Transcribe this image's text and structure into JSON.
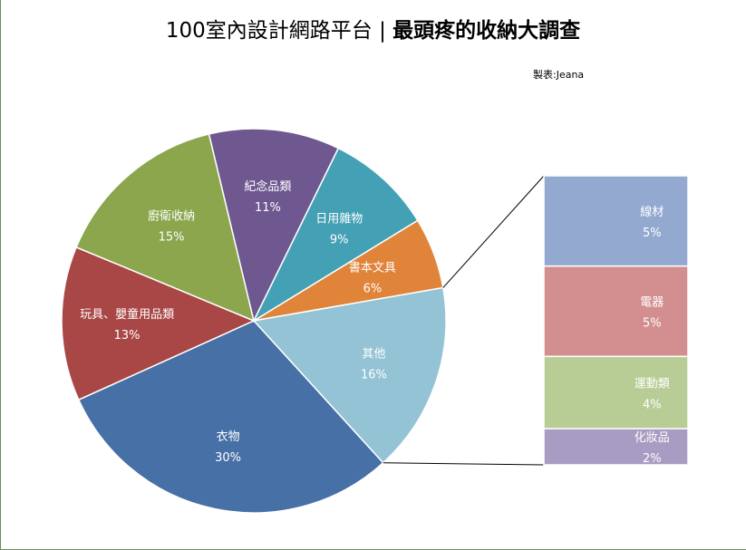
{
  "title": {
    "part1": "100室內設計網路平台",
    "separator": "|",
    "part2": "最頭疼的收納大調查"
  },
  "credit": "製表:Jeana",
  "chart_data": {
    "type": "pie",
    "title": "100室內設計網路平台 | 最頭疼的收納大調查",
    "slices": [
      {
        "label": "書本文具",
        "value": 6,
        "value_label": "6%",
        "color": "#e0843a"
      },
      {
        "label": "其他",
        "value": 16,
        "value_label": "16%",
        "color": "#93c3d5"
      },
      {
        "label": "衣物",
        "value": 30,
        "value_label": "30%",
        "color": "#4670a6"
      },
      {
        "label": "玩具、嬰童用品類",
        "value": 13,
        "value_label": "13%",
        "color": "#a94646"
      },
      {
        "label": "廚衛收納",
        "value": 15,
        "value_label": "15%",
        "color": "#8ba64d"
      },
      {
        "label": "紀念品類",
        "value": 11,
        "value_label": "11%",
        "color": "#6f5890"
      },
      {
        "label": "日用雜物",
        "value": 9,
        "value_label": "9%",
        "color": "#43a0b5"
      }
    ],
    "breakdown_of": "其他",
    "breakdown": [
      {
        "label": "線材",
        "value": 5,
        "value_label": "5%",
        "color": "#93a9d0"
      },
      {
        "label": "電器",
        "value": 5,
        "value_label": "5%",
        "color": "#d38f8f"
      },
      {
        "label": "運動類",
        "value": 4,
        "value_label": "4%",
        "color": "#b8cd95"
      },
      {
        "label": "化妝品",
        "value": 2,
        "value_label": "2%",
        "color": "#a99cc2"
      }
    ]
  }
}
